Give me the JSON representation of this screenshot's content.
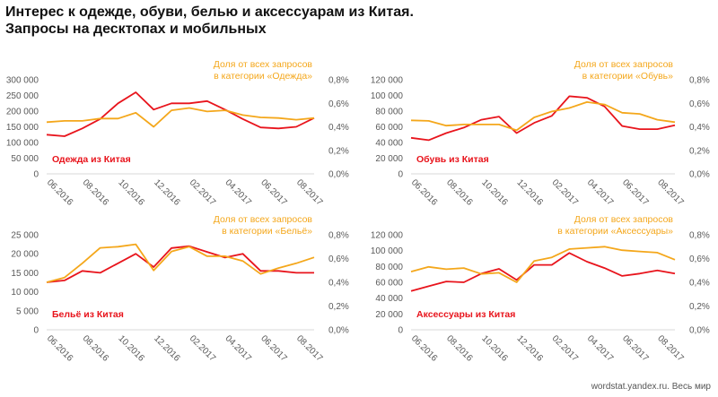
{
  "title_line1": "Интерес к одежде, обуви, белью и аксессуарам из Китая.",
  "title_line2": "Запросы на десктопах  и мобильных",
  "footer": "wordstat.yandex.ru. Весь мир",
  "colors": {
    "china": "#e8141c",
    "share": "#f4a71b",
    "axis_text": "#595959",
    "grid": "#d9d9d9"
  },
  "chart_data": [
    {
      "type": "line",
      "x": [
        "06.2016",
        "07.2016",
        "08.2016",
        "09.2016",
        "10.2016",
        "11.2016",
        "12.2016",
        "01.2017",
        "02.2017",
        "03.2017",
        "04.2017",
        "05.2017",
        "06.2017",
        "07.2017",
        "08.2017",
        "09.2017"
      ],
      "x_tick_labels": [
        "06.2016",
        "08.2016",
        "10.2016",
        "12.2016",
        "02.2017",
        "04.2017",
        "06.2017",
        "08.2017"
      ],
      "y_ticks": [
        "0",
        "50 000",
        "100 000",
        "150 000",
        "200 000",
        "250 000",
        "300 000"
      ],
      "y2_ticks": [
        "0,0%",
        "0,2%",
        "0,4%",
        "0,6%",
        "0,8%"
      ],
      "ylim": [
        0,
        300000
      ],
      "y2lim": [
        0,
        0.8
      ],
      "legend_china": "Одежда из Китая",
      "legend_share": "Доля от всех запросов\nв категории «Одежда»",
      "series": [
        {
          "name": "Одежда из Китая",
          "axis": "left",
          "values": [
            125000,
            120000,
            145000,
            175000,
            225000,
            260000,
            205000,
            225000,
            225000,
            232000,
            205000,
            175000,
            148000,
            145000,
            150000,
            178000
          ]
        },
        {
          "name": "Доля от всех запросов в категории «Одежда»",
          "axis": "right",
          "values": [
            0.44,
            0.45,
            0.45,
            0.47,
            0.47,
            0.52,
            0.4,
            0.54,
            0.56,
            0.53,
            0.54,
            0.5,
            0.48,
            0.475,
            0.46,
            0.475
          ]
        }
      ]
    },
    {
      "type": "line",
      "x": [
        "06.2016",
        "07.2016",
        "08.2016",
        "09.2016",
        "10.2016",
        "11.2016",
        "12.2016",
        "01.2017",
        "02.2017",
        "03.2017",
        "04.2017",
        "05.2017",
        "06.2017",
        "07.2017",
        "08.2017",
        "09.2017"
      ],
      "x_tick_labels": [
        "06.2016",
        "08.2016",
        "10.2016",
        "12.2016",
        "02.2017",
        "04.2017",
        "06.2017",
        "08.2017"
      ],
      "y_ticks": [
        "0",
        "20 000",
        "40 000",
        "60 000",
        "80 000",
        "100 000",
        "120 000"
      ],
      "y2_ticks": [
        "0,0%",
        "0,2%",
        "0,4%",
        "0,6%",
        "0,8%"
      ],
      "ylim": [
        0,
        120000
      ],
      "y2lim": [
        0,
        0.8
      ],
      "legend_china": "Обувь из Китая",
      "legend_share": "Доля от всех запросов\nв категории «Обувь»",
      "series": [
        {
          "name": "Обувь из Китая",
          "axis": "left",
          "values": [
            46000,
            43000,
            52000,
            59000,
            69000,
            73000,
            52000,
            65000,
            74000,
            99000,
            97000,
            86000,
            61000,
            57000,
            57000,
            62000
          ]
        },
        {
          "name": "Доля от всех запросов в категории «Обувь»",
          "axis": "right",
          "values": [
            0.455,
            0.45,
            0.41,
            0.42,
            0.42,
            0.42,
            0.37,
            0.48,
            0.53,
            0.56,
            0.61,
            0.59,
            0.52,
            0.51,
            0.46,
            0.44
          ]
        }
      ]
    },
    {
      "type": "line",
      "x": [
        "06.2016",
        "07.2016",
        "08.2016",
        "09.2016",
        "10.2016",
        "11.2016",
        "12.2016",
        "01.2017",
        "02.2017",
        "03.2017",
        "04.2017",
        "05.2017",
        "06.2017",
        "07.2017",
        "08.2017",
        "09.2017"
      ],
      "x_tick_labels": [
        "06.2016",
        "08.2016",
        "10.2016",
        "12.2016",
        "02.2017",
        "04.2017",
        "06.2017",
        "08.2017"
      ],
      "y_ticks": [
        "0",
        "5 000",
        "10 000",
        "15 000",
        "20 000",
        "25 000"
      ],
      "y2_ticks": [
        "0,0%",
        "0,2%",
        "0,4%",
        "0,6%",
        "0,8%"
      ],
      "ylim": [
        0,
        25000
      ],
      "y2lim": [
        0,
        0.8
      ],
      "legend_china": "Бельё из Китая",
      "legend_share": "Доля от всех запросов\nв категории «Бельё»",
      "series": [
        {
          "name": "Бельё из Китая",
          "axis": "left",
          "values": [
            12500,
            13000,
            15500,
            15000,
            17500,
            20000,
            16500,
            21500,
            22000,
            20500,
            19000,
            20000,
            15500,
            15500,
            15000,
            15000
          ]
        },
        {
          "name": "Доля от всех запросов в категории «Бельё»",
          "axis": "right",
          "values": [
            0.4,
            0.44,
            0.56,
            0.69,
            0.7,
            0.72,
            0.5,
            0.66,
            0.7,
            0.62,
            0.62,
            0.58,
            0.47,
            0.52,
            0.56,
            0.61
          ]
        }
      ]
    },
    {
      "type": "line",
      "x": [
        "06.2016",
        "07.2016",
        "08.2016",
        "09.2016",
        "10.2016",
        "11.2016",
        "12.2016",
        "01.2017",
        "02.2017",
        "03.2017",
        "04.2017",
        "05.2017",
        "06.2017",
        "07.2017",
        "08.2017",
        "09.2017"
      ],
      "x_tick_labels": [
        "06.2016",
        "08.2016",
        "10.2016",
        "12.2016",
        "02.2017",
        "04.2017",
        "06.2017",
        "08.2017"
      ],
      "y_ticks": [
        "0",
        "20 000",
        "40 000",
        "60 000",
        "80 000",
        "100 000",
        "120 000"
      ],
      "y2_ticks": [
        "0,0%",
        "0,2%",
        "0,4%",
        "0,6%",
        "0,8%"
      ],
      "ylim": [
        0,
        120000
      ],
      "y2lim": [
        0,
        0.8
      ],
      "legend_china": "Аксессуары из Китая",
      "legend_share": "Доля от всех запросов\nв категории «Аксессуары»",
      "series": [
        {
          "name": "Аксессуары из Китая",
          "axis": "left",
          "values": [
            49000,
            55000,
            61000,
            60000,
            71000,
            77000,
            63000,
            82000,
            82000,
            97000,
            86000,
            78000,
            68000,
            71000,
            75000,
            71000
          ]
        },
        {
          "name": "Доля от всех запросов в категории «Аксессуары»",
          "axis": "right",
          "values": [
            0.49,
            0.53,
            0.51,
            0.52,
            0.47,
            0.48,
            0.4,
            0.58,
            0.61,
            0.68,
            0.69,
            0.7,
            0.67,
            0.66,
            0.65,
            0.59
          ]
        }
      ]
    }
  ]
}
